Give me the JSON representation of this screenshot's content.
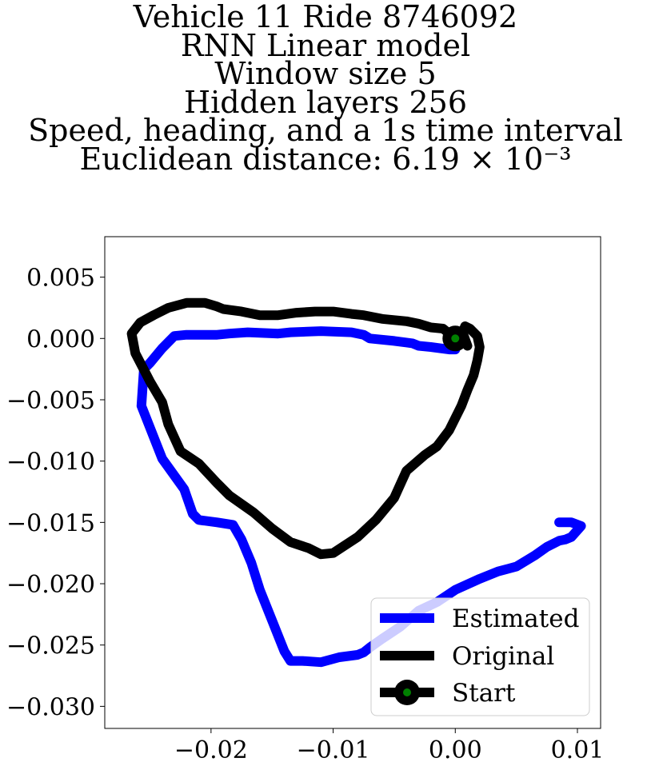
{
  "chart_data": {
    "type": "line",
    "title_lines": [
      "Vehicle 11 Ride 8746092",
      "RNN Linear model",
      "Window size 5",
      "Hidden layers 256",
      "Speed, heading, and a 1s time interval",
      "Euclidean distance: 6.19 × 10⁻³"
    ],
    "xlabel": "",
    "ylabel": "",
    "xlim": [
      -0.0287,
      0.0119
    ],
    "ylim": [
      -0.0318,
      0.0083
    ],
    "x_ticks": [
      -0.02,
      -0.01,
      0.0,
      0.01
    ],
    "x_tick_labels": [
      "−0.02",
      "−0.01",
      "0.00",
      "0.01"
    ],
    "y_ticks": [
      0.005,
      0.0,
      -0.005,
      -0.01,
      -0.015,
      -0.02,
      -0.025,
      -0.03
    ],
    "y_tick_labels": [
      "0.005",
      "0.000",
      "−0.005",
      "−0.010",
      "−0.015",
      "−0.020",
      "−0.025",
      "−0.030"
    ],
    "grid": false,
    "legend_position": "lower-right",
    "series": [
      {
        "name": "Estimated",
        "color": "#0000ff",
        "x": [
          0.0,
          -0.0005,
          -0.002,
          -0.003,
          -0.0035,
          -0.005,
          -0.007,
          -0.0075,
          -0.0085,
          -0.011,
          -0.0135,
          -0.0145,
          -0.017,
          -0.0185,
          -0.0195,
          -0.022,
          -0.023,
          -0.024,
          -0.025,
          -0.0255,
          -0.0257,
          -0.024,
          -0.0222,
          -0.0215,
          -0.021,
          -0.0195,
          -0.0182,
          -0.0175,
          -0.0167,
          -0.016,
          -0.015,
          -0.014,
          -0.0135,
          -0.0125,
          -0.011,
          -0.0095,
          -0.008,
          -0.0075,
          -0.007,
          -0.006,
          -0.0045,
          -0.003,
          -0.0015,
          0.0,
          0.002,
          0.0035,
          0.005,
          0.006,
          0.0065,
          0.0075,
          0.0085,
          0.009,
          0.0095,
          0.0103,
          0.0095,
          0.0085
        ],
        "y": [
          -0.0009,
          -0.0009,
          -0.0007,
          -0.0006,
          -0.0004,
          -0.0002,
          0.0,
          0.0003,
          0.0005,
          0.0006,
          0.0005,
          0.0004,
          0.0005,
          0.0004,
          0.0003,
          0.0003,
          0.0002,
          -0.0008,
          -0.002,
          -0.0025,
          -0.0055,
          -0.0098,
          -0.0123,
          -0.0143,
          -0.0148,
          -0.015,
          -0.0152,
          -0.0164,
          -0.0183,
          -0.0205,
          -0.023,
          -0.0255,
          -0.0263,
          -0.0263,
          -0.0264,
          -0.026,
          -0.0258,
          -0.0256,
          -0.0252,
          -0.0245,
          -0.0235,
          -0.0222,
          -0.0215,
          -0.0205,
          -0.0196,
          -0.019,
          -0.0186,
          -0.018,
          -0.0177,
          -0.017,
          -0.0165,
          -0.0164,
          -0.0162,
          -0.0153,
          -0.015,
          -0.015
        ]
      },
      {
        "name": "Original",
        "color": "#000000",
        "x": [
          0.0,
          -0.001,
          -0.002,
          -0.003,
          -0.004,
          -0.005,
          -0.006,
          -0.0075,
          -0.0085,
          -0.01,
          -0.0115,
          -0.013,
          -0.0145,
          -0.016,
          -0.0175,
          -0.019,
          -0.0195,
          -0.0205,
          -0.022,
          -0.0235,
          -0.0247,
          -0.0258,
          -0.0265,
          -0.0262,
          -0.025,
          -0.024,
          -0.0235,
          -0.0225,
          -0.021,
          -0.0195,
          -0.0185,
          -0.0165,
          -0.015,
          -0.0135,
          -0.012,
          -0.011,
          -0.01,
          -0.008,
          -0.0065,
          -0.005,
          -0.004,
          -0.0025,
          -0.0015,
          -0.0005,
          0.0005,
          0.001,
          0.0015,
          0.0018,
          0.002,
          0.0018,
          0.0012,
          0.0008,
          0.0006,
          0.001
        ],
        "y": [
          0.0,
          0.0008,
          0.0009,
          0.0012,
          0.0014,
          0.0015,
          0.0016,
          0.0019,
          0.002,
          0.0022,
          0.0022,
          0.0021,
          0.0019,
          0.0019,
          0.0022,
          0.0024,
          0.0026,
          0.0029,
          0.0029,
          0.0025,
          0.0019,
          0.0013,
          0.0004,
          -0.0012,
          -0.0035,
          -0.0052,
          -0.007,
          -0.0092,
          -0.0102,
          -0.0118,
          -0.0128,
          -0.0142,
          -0.0155,
          -0.0166,
          -0.0171,
          -0.0176,
          -0.0175,
          -0.0162,
          -0.0148,
          -0.013,
          -0.0108,
          -0.0095,
          -0.0088,
          -0.0075,
          -0.0055,
          -0.0042,
          -0.003,
          -0.0018,
          -0.0007,
          0.0002,
          0.0008,
          0.001,
          0.0005,
          -0.0006
        ]
      }
    ],
    "start_marker": {
      "name": "Start",
      "x": 0.0,
      "y": 0.0,
      "outer_color": "#000000",
      "inner_color": "#008000"
    }
  }
}
